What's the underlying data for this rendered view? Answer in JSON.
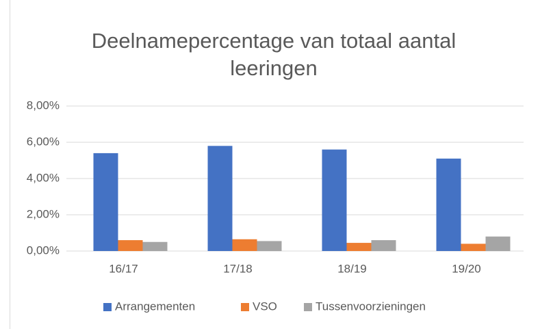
{
  "chart_data": {
    "type": "bar",
    "title": "Deelnamepercentage van totaal aantal leeringen",
    "categories": [
      "16/17",
      "17/18",
      "18/19",
      "19/20"
    ],
    "series": [
      {
        "name": "Arrangementen",
        "color": "#4472c4",
        "values": [
          5.4,
          5.8,
          5.6,
          5.1
        ]
      },
      {
        "name": "VSO",
        "color": "#ed7d31",
        "values": [
          0.6,
          0.65,
          0.45,
          0.4
        ]
      },
      {
        "name": "Tussenvoorzieningen",
        "color": "#a5a5a5",
        "values": [
          0.5,
          0.55,
          0.6,
          0.8
        ]
      }
    ],
    "ylim": [
      0,
      8
    ],
    "yticks": [
      {
        "value": 0,
        "label": "0,00%"
      },
      {
        "value": 2,
        "label": "2,00%"
      },
      {
        "value": 4,
        "label": "4,00%"
      },
      {
        "value": 6,
        "label": "6,00%"
      },
      {
        "value": 8,
        "label": "8,00%"
      }
    ],
    "grid": true,
    "legend": "bottom"
  }
}
